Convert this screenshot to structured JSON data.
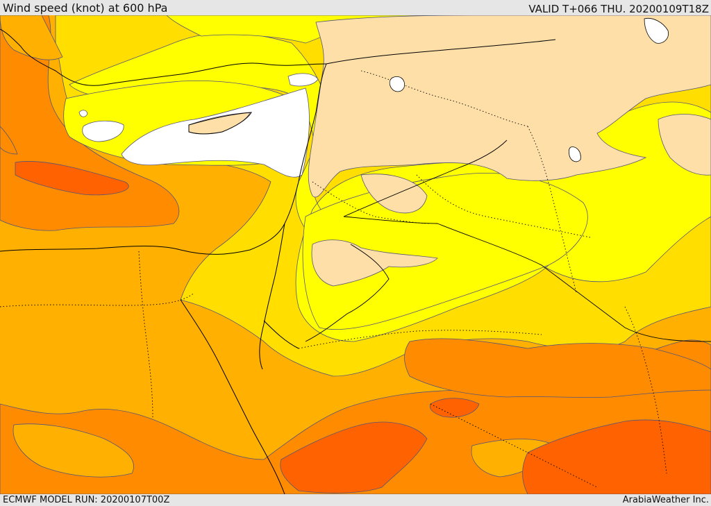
{
  "header": {
    "title": "Wind speed (knot) at 600 hPa",
    "valid": "VALID T+066 THU. 20200109T18Z"
  },
  "footer": {
    "model_run": "ECMWF MODEL RUN: 20200107T00Z",
    "credit": "ArabiaWeather Inc."
  },
  "map": {
    "variable": "wind speed",
    "unit": "knot",
    "level": "600 hPa",
    "palette": {
      "calm": "#ffffff",
      "light": "#ffdfa8",
      "low": "#ffff00",
      "mid": "#ffde00",
      "moderate": "#ffb000",
      "strong": "#ff8c00",
      "very_strong": "#ff6200",
      "coastline": "#000000",
      "contour": "#555577"
    }
  }
}
